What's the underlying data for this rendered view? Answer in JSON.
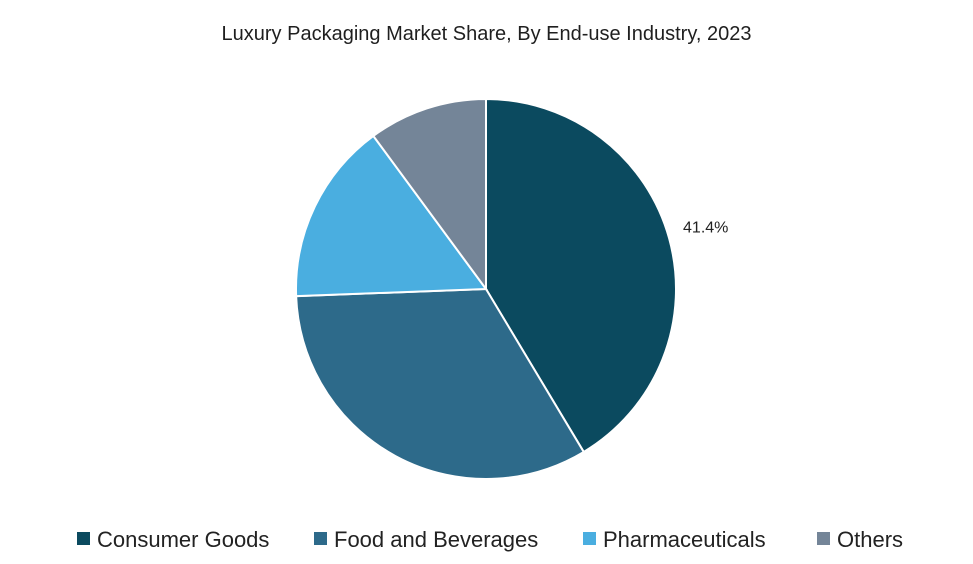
{
  "chart_data": {
    "type": "pie",
    "title": "Luxury Packaging Market Share, By End-use Industry, 2023",
    "categories": [
      "Consumer Goods",
      "Food and Beverages",
      "Pharmaceuticals",
      "Others"
    ],
    "values": [
      41.4,
      33.0,
      15.5,
      10.1
    ],
    "colors": [
      "#0b4a5f",
      "#2d6a8a",
      "#4aaee0",
      "#748598"
    ],
    "data_labels": [
      "41.4%",
      "",
      "",
      ""
    ],
    "start_angle_deg": 0,
    "direction": "clockwise",
    "legend": {
      "position": "bottom",
      "items": [
        "Consumer Goods",
        "Food and Beverages",
        "Pharmaceuticals",
        "Others"
      ]
    }
  }
}
